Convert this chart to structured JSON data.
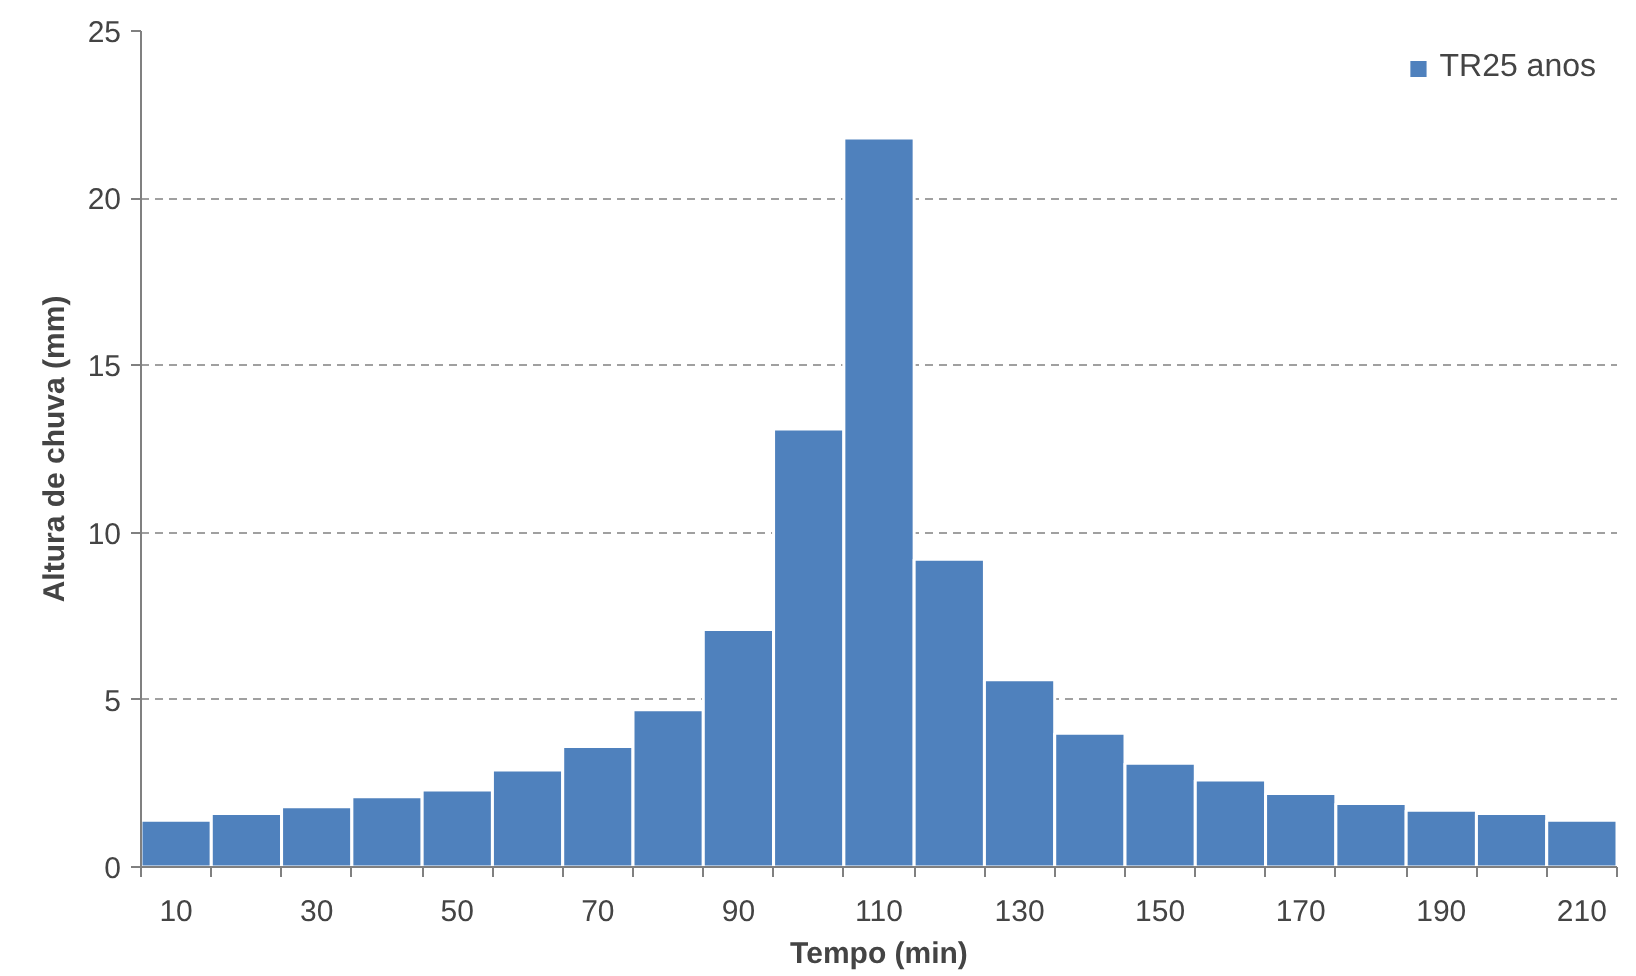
{
  "chart_data": {
    "type": "bar",
    "xlabel": "Tempo (min)",
    "ylabel": "Altura de chuva (mm)",
    "categories": [
      "10",
      null,
      "30",
      null,
      "50",
      null,
      "70",
      null,
      "90",
      null,
      "110",
      null,
      "130",
      null,
      "150",
      null,
      "170",
      null,
      "190",
      null,
      "210"
    ],
    "series": [
      {
        "name": "TR25 anos",
        "color": "#4f81bd",
        "values": [
          1.4,
          1.6,
          1.8,
          2.1,
          2.3,
          2.9,
          3.6,
          4.7,
          7.1,
          13.1,
          21.8,
          9.2,
          5.6,
          4.0,
          3.1,
          2.6,
          2.2,
          1.9,
          1.7,
          1.6,
          1.4
        ]
      }
    ],
    "ylim": [
      0,
      25
    ],
    "yticks": [
      0,
      5,
      10,
      15,
      20,
      25
    ],
    "grid": "y",
    "legend": "top right"
  }
}
